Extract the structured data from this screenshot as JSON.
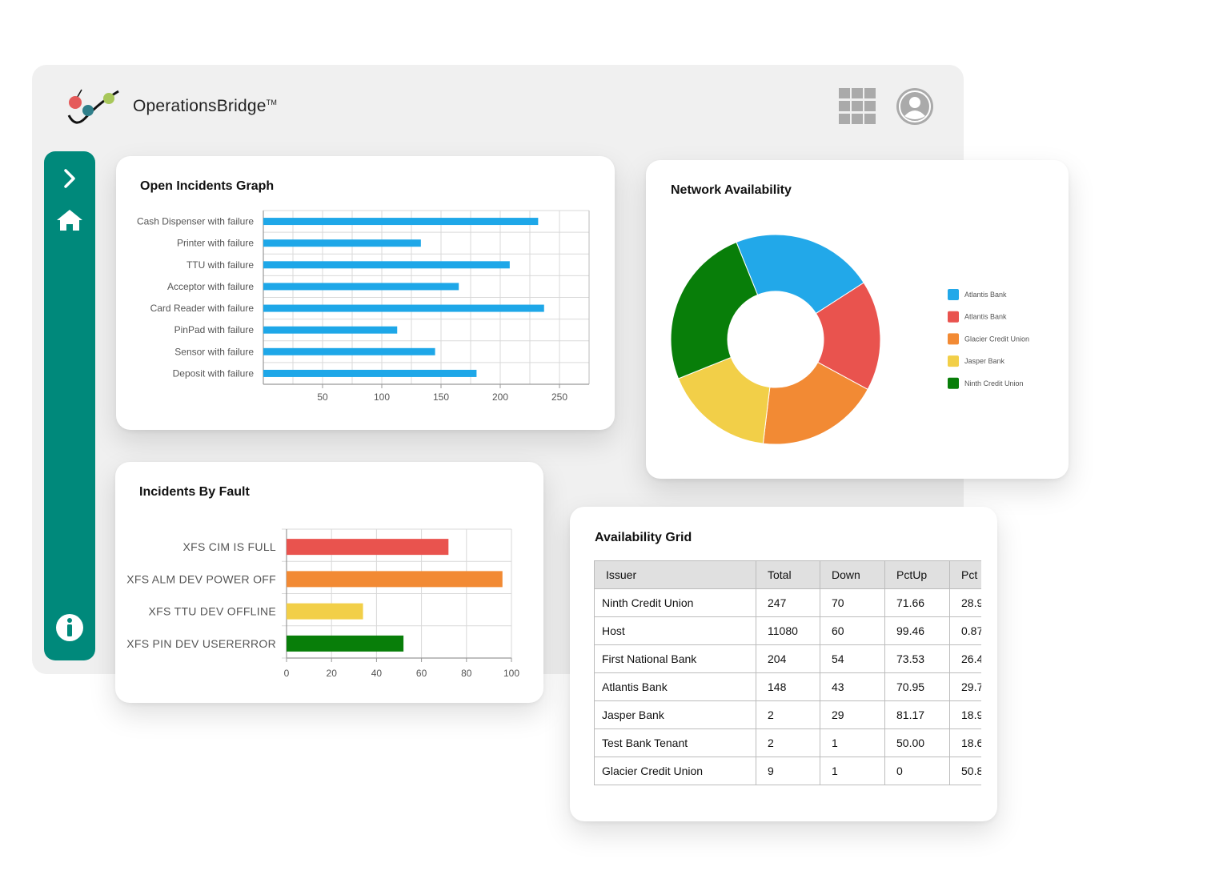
{
  "app": {
    "name": "OperationsBridge",
    "trademark": "TM",
    "icons": {
      "apps": "apps-grid-icon",
      "user": "user-avatar-icon"
    }
  },
  "sidebar": {
    "color": "#00897b",
    "items": [
      {
        "icon": "chevron-right-icon"
      },
      {
        "icon": "home-icon"
      },
      {
        "icon": "info-icon"
      }
    ]
  },
  "open_incidents": {
    "title": "Open Incidents Graph",
    "chart_data": {
      "type": "bar",
      "orientation": "horizontal",
      "categories": [
        "Cash Dispenser with failure",
        "Printer with failure",
        "TTU with failure",
        "Acceptor with failure",
        "Card Reader with failure",
        "PinPad with failure",
        "Sensor with failure",
        "Deposit with failure"
      ],
      "values": [
        232,
        133,
        208,
        165,
        237,
        113,
        145,
        180
      ],
      "xlim": [
        0,
        275
      ],
      "xticks": [
        50,
        100,
        150,
        200,
        250
      ],
      "grid": true,
      "color": "#1ea7e8"
    }
  },
  "network_availability": {
    "title": "Network Availability",
    "chart_data": {
      "type": "pie",
      "donut": true,
      "labels": [
        "Atlantis Bank",
        "Atlantis Bank",
        "Glacier Credit Union",
        "Jasper Bank",
        "Ninth Credit Union"
      ],
      "values": [
        22,
        17,
        19,
        17,
        25
      ],
      "colors": [
        "#22a8e9",
        "#e9534e",
        "#f28a34",
        "#f2cf48",
        "#087e09"
      ],
      "legend_position": "right"
    }
  },
  "incidents_by_fault": {
    "title": "Incidents By Fault",
    "chart_data": {
      "type": "bar",
      "orientation": "horizontal",
      "categories": [
        "XFS CIM IS FULL",
        "XFS ALM DEV POWER OFF",
        "XFS TTU DEV OFFLINE",
        "XFS PIN DEV USERERROR"
      ],
      "values": [
        72,
        96,
        34,
        52
      ],
      "colors": [
        "#e9534e",
        "#f28a34",
        "#f2cf48",
        "#087e09"
      ],
      "xlim": [
        0,
        100
      ],
      "xticks": [
        0,
        20,
        40,
        60,
        80,
        100
      ],
      "grid": true
    }
  },
  "availability_grid": {
    "title": "Availability Grid",
    "columns": [
      "Issuer",
      "Total",
      "Down",
      "PctUp",
      "Pct"
    ],
    "rows": [
      [
        "Ninth Credit Union",
        "247",
        "70",
        "71.66",
        "28.9"
      ],
      [
        "Host",
        "11080",
        "60",
        "99.46",
        "0.87"
      ],
      [
        "First National Bank",
        "204",
        "54",
        "73.53",
        "26.4"
      ],
      [
        "Atlantis Bank",
        "148",
        "43",
        "70.95",
        "29.7"
      ],
      [
        "Jasper Bank",
        "2",
        "29",
        "81.17",
        "18.9"
      ],
      [
        "Test Bank Tenant",
        "2",
        "1",
        "50.00",
        "18.6"
      ],
      [
        "Glacier Credit Union",
        "9",
        "1",
        "0",
        "50.8"
      ]
    ]
  }
}
